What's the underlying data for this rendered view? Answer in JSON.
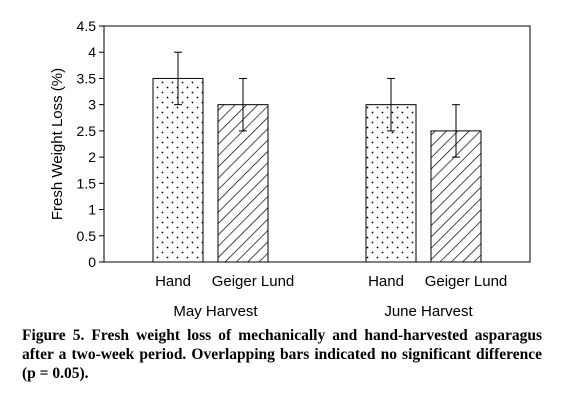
{
  "chart_data": {
    "type": "bar",
    "ylabel": "Fresh Weight Loss (%)",
    "ylim": [
      0,
      4.5
    ],
    "yticks": [
      "0",
      "0.5",
      "1",
      "1.5",
      "2",
      "2.5",
      "3",
      "3.5",
      "4",
      "4.5"
    ],
    "groups": [
      {
        "label": "May Harvest",
        "bars": [
          {
            "label": "Hand",
            "value": 3.5,
            "error": 0.5,
            "pattern": "dots"
          },
          {
            "label": "Geiger Lund",
            "value": 3.0,
            "error": 0.5,
            "pattern": "hatch"
          }
        ]
      },
      {
        "label": "June Harvest",
        "bars": [
          {
            "label": "Hand",
            "value": 3.0,
            "error": 0.5,
            "pattern": "dots"
          },
          {
            "label": "Geiger Lund",
            "value": 2.5,
            "error": 0.5,
            "pattern": "hatch"
          }
        ]
      }
    ],
    "grid": false,
    "colors": {
      "bar_fill": "#ffffff",
      "ink": "#000000"
    }
  },
  "caption": "Figure 5. Fresh weight loss of mechanically and hand-harvested asparagus after a two-week period. Overlapping bars indicated no significant difference (p = 0.05)."
}
